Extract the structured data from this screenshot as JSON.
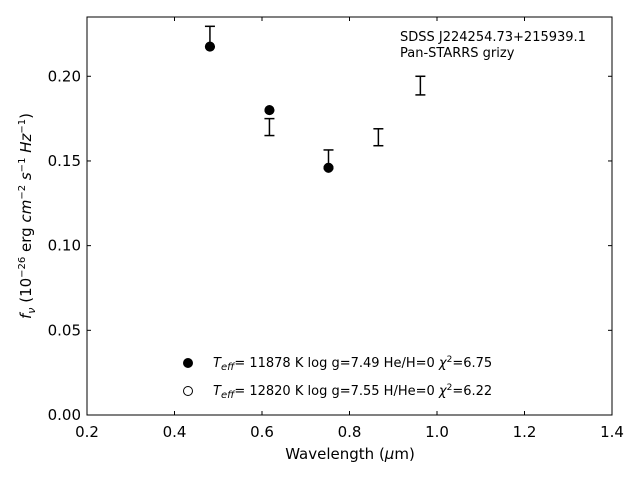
{
  "chart_data": {
    "type": "scatter",
    "title": "",
    "annotation_lines": [
      "SDSS J224254.73+215939.1",
      "Pan-STARRS grizy"
    ],
    "xlabel": {
      "prefix": "Wavelength (",
      "mu": "μ",
      "suffix": "m)"
    },
    "ylabel": {
      "f": "f",
      "nu": "ν",
      "rest1": " (10",
      "exp26": "−26",
      "rest2": " erg ",
      "cm": "cm",
      "expm2": "−2",
      "s": "s",
      "expm1": "−1",
      "hz": "Hz",
      "expm1b": "−1",
      "close": ")"
    },
    "xlim": [
      0.2,
      1.4
    ],
    "ylim": [
      0.0,
      0.235
    ],
    "xticks": [
      0.2,
      0.4,
      0.6,
      0.8,
      1.0,
      1.2,
      1.4
    ],
    "xtick_labels": [
      "0.2",
      "0.4",
      "0.6",
      "0.8",
      "1.0",
      "1.2",
      "1.4"
    ],
    "yticks": [
      0.0,
      0.05,
      0.1,
      0.15,
      0.2
    ],
    "ytick_labels": [
      "0.00",
      "0.05",
      "0.10",
      "0.15",
      "0.20"
    ],
    "observed": [
      {
        "x": 0.481,
        "y": 0.2235,
        "err": 0.006
      },
      {
        "x": 0.617,
        "y": 0.17,
        "err": 0.005
      },
      {
        "x": 0.752,
        "y": 0.151,
        "err": 0.0055
      },
      {
        "x": 0.866,
        "y": 0.164,
        "err": 0.005
      },
      {
        "x": 0.962,
        "y": 0.1945,
        "err": 0.0055
      }
    ],
    "model_he": [
      {
        "x": 0.481,
        "y": 0.2175
      },
      {
        "x": 0.617,
        "y": 0.18
      },
      {
        "x": 0.752,
        "y": 0.146
      }
    ],
    "model_h": [
      {
        "x": 0.481,
        "y": 0.2175
      },
      {
        "x": 0.617,
        "y": 0.18
      },
      {
        "x": 0.752,
        "y": 0.146
      }
    ],
    "legend": [
      {
        "marker": "filled",
        "teff_T": "T",
        "teff_sub": "eff",
        "rest": "= 11878 K  log g=7.49  He/H=0  ",
        "chi": "χ",
        "sup": "2",
        "val": "=6.75"
      },
      {
        "marker": "open",
        "teff_T": "T",
        "teff_sub": "eff",
        "rest": "= 12820 K  log g=7.55  H/He=0  ",
        "chi": "χ",
        "sup": "2",
        "val": "=6.22"
      }
    ],
    "legend_placement": "bottom-center",
    "grid": false
  }
}
